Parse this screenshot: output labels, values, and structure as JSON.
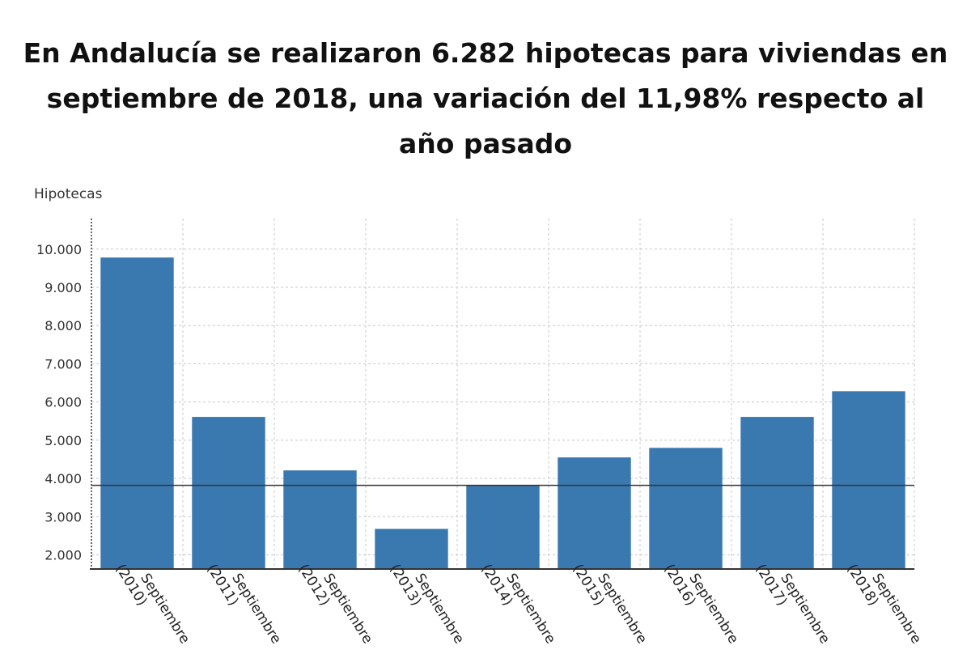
{
  "chart_data": {
    "type": "bar",
    "title": "En Andalucía se realizaron 6.282 hipotecas para viviendas en septiembre de 2018, una variación del 11,98% respecto al año pasado",
    "ylabel": "Hipotecas",
    "xlabel": "",
    "categories": [
      [
        "Septiembre",
        "(2010)"
      ],
      [
        "Septiembre",
        "(2011)"
      ],
      [
        "Septiembre",
        "(2012)"
      ],
      [
        "Septiembre",
        "(2013)"
      ],
      [
        "Septiembre",
        "(2014)"
      ],
      [
        "Septiembre",
        "(2015)"
      ],
      [
        "Septiembre",
        "(2016)"
      ],
      [
        "Septiembre",
        "(2017)"
      ],
      [
        "Septiembre",
        "(2018)"
      ]
    ],
    "values": [
      9780,
      5610,
      4210,
      2680,
      3820,
      4550,
      4800,
      5610,
      6282
    ],
    "reference_line": 3820,
    "ylim": [
      1630,
      10800
    ],
    "yticks": [
      2000,
      3000,
      4000,
      5000,
      6000,
      7000,
      8000,
      9000,
      10000
    ],
    "ytick_labels": [
      "2.000",
      "3.000",
      "4.000",
      "5.000",
      "6.000",
      "7.000",
      "8.000",
      "9.000",
      "10.000"
    ],
    "grid": true,
    "colors": {
      "bar": "#3a78b0",
      "grid": "#c8c8c8",
      "axis": "#333333"
    }
  }
}
